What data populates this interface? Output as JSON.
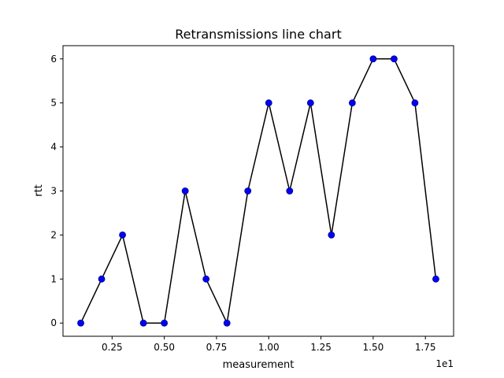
{
  "chart_data": {
    "type": "line",
    "title": "Retransmissions line chart",
    "xlabel": "measurement",
    "ylabel": "rtt",
    "x_offset_label": "1e1",
    "x": [
      1,
      2,
      3,
      4,
      5,
      6,
      7,
      8,
      9,
      10,
      11,
      12,
      13,
      14,
      15,
      16,
      17,
      18
    ],
    "series": [
      {
        "values": [
          0,
          1,
          2,
          0,
          0,
          3,
          1,
          0,
          3,
          5,
          3,
          5,
          2,
          5,
          6,
          6,
          5,
          1
        ]
      }
    ],
    "xlim": [
      0.15,
      18.85
    ],
    "ylim": [
      -0.3,
      6.3
    ],
    "x_ticks": [
      2.5,
      5,
      7.5,
      10,
      12.5,
      15,
      17.5
    ],
    "x_tick_labels": [
      "0.25",
      "0.50",
      "0.75",
      "1.00",
      "1.25",
      "1.50",
      "1.75"
    ],
    "y_ticks": [
      0,
      1,
      2,
      3,
      4,
      5,
      6
    ],
    "y_tick_labels": [
      "0",
      "1",
      "2",
      "3",
      "4",
      "5",
      "6"
    ],
    "grid": false,
    "line_color": "#000000",
    "marker_color": "#0000ff",
    "marker_edge_color": "#000080"
  }
}
